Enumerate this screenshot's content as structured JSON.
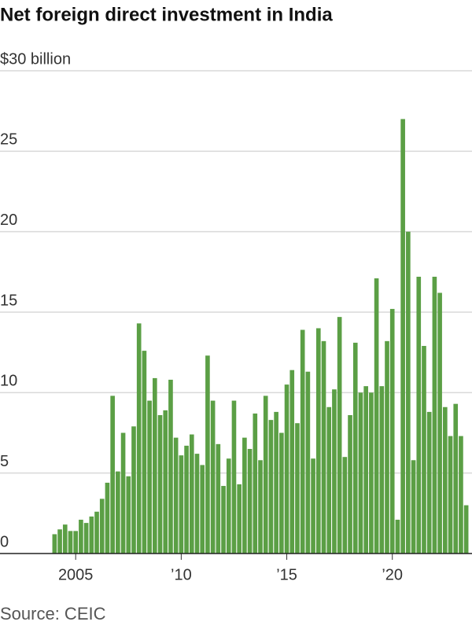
{
  "chart_data": {
    "type": "bar",
    "title": "Net foreign direct investment in India",
    "source": "Source: CEIC",
    "color": "#5b9f45",
    "grid": true,
    "ylim": [
      0,
      30
    ],
    "yticks": [
      0,
      5,
      10,
      15,
      20,
      25,
      {
        "value": 30,
        "label": "$30 billion"
      }
    ],
    "categories": [
      null,
      null,
      null,
      null,
      "2005",
      null,
      null,
      null,
      null,
      null,
      null,
      null,
      null,
      null,
      null,
      null,
      null,
      null,
      null,
      null,
      null,
      null,
      null,
      null,
      "’10",
      null,
      null,
      null,
      null,
      null,
      null,
      null,
      null,
      null,
      null,
      null,
      null,
      null,
      null,
      null,
      null,
      null,
      null,
      null,
      "’15",
      null,
      null,
      null,
      null,
      null,
      null,
      null,
      null,
      null,
      null,
      null,
      null,
      null,
      null,
      null,
      null,
      null,
      null,
      null,
      "’20",
      null,
      null,
      null,
      null,
      null,
      null,
      null,
      null,
      null,
      null,
      null,
      null,
      null,
      null
    ],
    "values": [
      1.2,
      1.5,
      1.8,
      1.4,
      1.4,
      2.1,
      1.9,
      2.3,
      2.6,
      3.4,
      4.4,
      9.8,
      5.1,
      7.5,
      4.8,
      7.9,
      14.3,
      12.6,
      9.5,
      10.9,
      8.6,
      8.9,
      10.8,
      7.2,
      6.1,
      6.7,
      7.4,
      6.2,
      5.5,
      12.3,
      9.5,
      6.8,
      4.2,
      5.9,
      9.5,
      4.3,
      7.2,
      6.5,
      8.7,
      5.8,
      9.8,
      8.3,
      8.8,
      7.5,
      10.5,
      11.4,
      8.1,
      13.9,
      11.3,
      5.9,
      14.0,
      13.2,
      9.1,
      10.2,
      14.7,
      6.0,
      8.6,
      13.1,
      10.0,
      10.4,
      10.0,
      17.1,
      10.4,
      13.2,
      15.2,
      2.1,
      27.0,
      20.0,
      5.8,
      17.2,
      12.9,
      8.8,
      17.2,
      16.2,
      9.1,
      7.3,
      9.3,
      7.3,
      3.0
    ]
  }
}
